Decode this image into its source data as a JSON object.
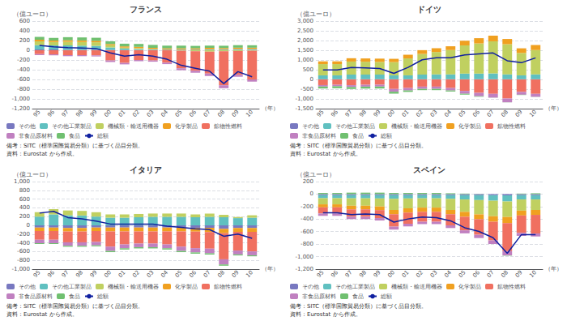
{
  "chart_data": [
    {
      "type": "bar",
      "stacked": true,
      "title": "フランス",
      "xlabel": "（年）",
      "ylabel": "（億ユーロ）",
      "categories": [
        "95",
        "96",
        "97",
        "98",
        "99",
        "00",
        "01",
        "02",
        "03",
        "04",
        "05",
        "06",
        "07",
        "08",
        "09",
        "10"
      ],
      "series": [
        {
          "name": "その他",
          "color": "#7878c0",
          "values": [
            15,
            15,
            10,
            10,
            10,
            8,
            5,
            5,
            5,
            5,
            5,
            5,
            5,
            5,
            5,
            5
          ]
        },
        {
          "name": "その他工業製品",
          "color": "#60c0c0",
          "values": [
            90,
            85,
            90,
            85,
            80,
            50,
            30,
            20,
            15,
            10,
            10,
            10,
            15,
            15,
            20,
            20
          ]
        },
        {
          "name": "機械類・輸送用機器",
          "color": "#c0d060",
          "values": [
            80,
            70,
            75,
            75,
            75,
            45,
            20,
            20,
            5,
            0,
            -10,
            -20,
            -30,
            -20,
            -15,
            -10
          ]
        },
        {
          "name": "化学製品",
          "color": "#f0a020",
          "values": [
            30,
            28,
            32,
            32,
            30,
            25,
            25,
            25,
            25,
            25,
            25,
            25,
            28,
            25,
            28,
            28
          ]
        },
        {
          "name": "鉱物性燃料",
          "color": "#f07060",
          "values": [
            -80,
            -85,
            -100,
            -100,
            -105,
            -210,
            -260,
            -200,
            -210,
            -255,
            -360,
            -400,
            -450,
            -700,
            -490,
            -590
          ]
        },
        {
          "name": "非食品原材料",
          "color": "#c080c0",
          "values": [
            -20,
            -20,
            -22,
            -22,
            -22,
            -32,
            -30,
            -25,
            -25,
            -30,
            -40,
            -42,
            -50,
            -60,
            -40,
            -45
          ]
        },
        {
          "name": "食品",
          "color": "#70c070",
          "values": [
            60,
            58,
            62,
            62,
            62,
            55,
            55,
            60,
            60,
            55,
            55,
            50,
            48,
            48,
            52,
            50
          ]
        },
        {
          "name": "総額",
          "type": "line",
          "color": "#1020a0",
          "values": [
            100,
            70,
            55,
            45,
            35,
            -55,
            -120,
            -90,
            -120,
            -185,
            -310,
            -370,
            -430,
            -685,
            -440,
            -545
          ]
        }
      ],
      "ylim": [
        -1200,
        600
      ],
      "yticks": [
        {
          "value": -1200,
          "label": "-1,200"
        },
        {
          "value": -1000,
          "label": "-1,000"
        },
        -800,
        -600,
        -400,
        -200,
        0,
        200,
        400,
        600
      ],
      "grid": true,
      "legend": "bottom",
      "annotations": [
        "備考：SITC（標準国際貿易分類）に基づく品目分類。",
        "資料：Eurostat から作成。"
      ]
    },
    {
      "type": "bar",
      "stacked": true,
      "title": "ドイツ",
      "xlabel": "（年）",
      "ylabel": "（億ユーロ）",
      "categories": [
        "95",
        "96",
        "97",
        "98",
        "99",
        "00",
        "01",
        "02",
        "03",
        "04",
        "05",
        "06",
        "07",
        "08",
        "09",
        "10"
      ],
      "series": [
        {
          "name": "その他",
          "color": "#7878c0",
          "values": [
            10,
            10,
            10,
            10,
            10,
            10,
            10,
            10,
            10,
            10,
            10,
            10,
            10,
            10,
            10,
            10
          ]
        },
        {
          "name": "その他工業製品",
          "color": "#60c0c0",
          "values": [
            200,
            200,
            240,
            240,
            240,
            200,
            200,
            240,
            250,
            250,
            290,
            290,
            300,
            250,
            200,
            250
          ]
        },
        {
          "name": "機械類・輸送用機器",
          "color": "#c0d060",
          "values": [
            580,
            580,
            670,
            660,
            650,
            680,
            870,
            1060,
            1150,
            1250,
            1450,
            1550,
            1650,
            1550,
            1150,
            1250
          ]
        },
        {
          "name": "化学製品",
          "color": "#f0a020",
          "values": [
            140,
            140,
            170,
            170,
            170,
            170,
            190,
            195,
            195,
            195,
            240,
            270,
            290,
            270,
            240,
            260
          ]
        },
        {
          "name": "鉱物性燃料",
          "color": "#f07060",
          "values": [
            -290,
            -275,
            -295,
            -275,
            -270,
            -490,
            -440,
            -370,
            -370,
            -440,
            -590,
            -690,
            -740,
            -980,
            -640,
            -740
          ]
        },
        {
          "name": "非食品原材料",
          "color": "#c080c0",
          "values": [
            -75,
            -75,
            -95,
            -95,
            -95,
            -140,
            -125,
            -115,
            -115,
            -125,
            -145,
            -175,
            -195,
            -195,
            -145,
            -155
          ]
        },
        {
          "name": "食品",
          "color": "#70c070",
          "values": [
            -100,
            -100,
            -100,
            -100,
            -100,
            -100,
            -75,
            -65,
            -65,
            -55,
            -45,
            -25,
            -5,
            -5,
            -15,
            -5
          ]
        },
        {
          "name": "総額",
          "type": "line",
          "color": "#1020a0",
          "values": [
            490,
            490,
            610,
            590,
            560,
            310,
            620,
            1010,
            1110,
            1115,
            1260,
            1310,
            1360,
            960,
            860,
            1110
          ]
        }
      ],
      "ylim": [
        -1500,
        3000
      ],
      "yticks": [
        {
          "value": -1500,
          "label": "-1,500"
        },
        {
          "value": -1000,
          "label": "-1,000"
        },
        -500,
        0,
        500,
        {
          "value": 1000,
          "label": "1,000"
        },
        {
          "value": 1500,
          "label": "1,500"
        },
        {
          "value": 2000,
          "label": "2,000"
        },
        {
          "value": 2500,
          "label": "2,500"
        },
        {
          "value": 3000,
          "label": "3,000"
        }
      ],
      "grid": true,
      "legend": "bottom",
      "annotations": [
        "備考：SITC（標準国際貿易分類）に基づく品目分類。",
        "資料：Eurostat から作成。"
      ]
    },
    {
      "type": "bar",
      "stacked": true,
      "title": "イタリア",
      "xlabel": "（年）",
      "ylabel": "（億ユーロ）",
      "categories": [
        "95",
        "96",
        "97",
        "98",
        "99",
        "00",
        "01",
        "02",
        "03",
        "04",
        "05",
        "06",
        "07",
        "08",
        "09",
        "10"
      ],
      "series": [
        {
          "name": "その他",
          "color": "#7878c0",
          "values": [
            -50,
            -50,
            -60,
            -60,
            -50,
            -50,
            -50,
            -50,
            -50,
            -50,
            -50,
            -55,
            -55,
            -80,
            -60,
            -60
          ]
        },
        {
          "name": "その他工業製品",
          "color": "#60c0c0",
          "values": [
            200,
            250,
            230,
            225,
            200,
            175,
            175,
            185,
            195,
            195,
            195,
            185,
            195,
            185,
            165,
            175
          ]
        },
        {
          "name": "機械類・輸送用機器",
          "color": "#c0d060",
          "values": [
            100,
            120,
            110,
            105,
            100,
            75,
            75,
            75,
            75,
            75,
            75,
            65,
            75,
            55,
            25,
            55
          ]
        },
        {
          "name": "化学製品",
          "color": "#f0a020",
          "values": [
            -80,
            -80,
            -80,
            -80,
            -80,
            -88,
            -88,
            -88,
            -88,
            -88,
            -88,
            -88,
            -98,
            -98,
            -88,
            -88
          ]
        },
        {
          "name": "鉱物性燃料",
          "color": "#f07060",
          "values": [
            -200,
            -200,
            -248,
            -248,
            -248,
            -348,
            -298,
            -278,
            -278,
            -298,
            -348,
            -378,
            -378,
            -598,
            -428,
            -448
          ]
        },
        {
          "name": "非食品原材料",
          "color": "#c080c0",
          "values": [
            -78,
            -78,
            -78,
            -78,
            -78,
            -98,
            -88,
            -83,
            -83,
            -88,
            -98,
            -98,
            -108,
            -118,
            -88,
            -88
          ]
        },
        {
          "name": "食品",
          "color": "#70c070",
          "values": [
            -20,
            -18,
            -23,
            -23,
            -23,
            -28,
            -28,
            -28,
            -28,
            -28,
            -28,
            -28,
            -28,
            -28,
            -23,
            -23
          ]
        },
        {
          "name": "総額",
          "type": "line",
          "color": "#1020a0",
          "values": [
            280,
            320,
            178,
            148,
            98,
            30,
            28,
            28,
            28,
            -18,
            -48,
            -78,
            -98,
            -248,
            -198,
            -295
          ]
        }
      ],
      "ylim": [
        -1000,
        1000
      ],
      "yticks": [
        {
          "value": -1000,
          "label": "-1,000"
        },
        -800,
        -600,
        -400,
        -200,
        0,
        200,
        400,
        600,
        800,
        {
          "value": 1000,
          "label": "1,000"
        }
      ],
      "grid": true,
      "legend": "bottom",
      "annotations": [
        "備考：SITC（標準国際貿易分類）に基づく品目分類。",
        "資料：Eurostat から作成。"
      ]
    },
    {
      "type": "bar",
      "stacked": true,
      "title": "スペイン",
      "xlabel": "（年）",
      "ylabel": "（億ユーロ）",
      "categories": [
        "95",
        "96",
        "97",
        "98",
        "99",
        "00",
        "01",
        "02",
        "03",
        "04",
        "05",
        "06",
        "07",
        "08",
        "09",
        "10"
      ],
      "series": [
        {
          "name": "その他",
          "color": "#7878c0",
          "values": [
            -18,
            -18,
            -18,
            -18,
            -18,
            -18,
            -18,
            -18,
            -18,
            -18,
            -18,
            -18,
            -18,
            -20,
            -18,
            -18
          ]
        },
        {
          "name": "その他工業製品",
          "color": "#60c0c0",
          "values": [
            -48,
            -48,
            -50,
            -50,
            -52,
            -58,
            -52,
            -50,
            -50,
            -58,
            -68,
            -78,
            -88,
            -98,
            -68,
            -68
          ]
        },
        {
          "name": "機械類・輸送用機器",
          "color": "#c0d060",
          "values": [
            -98,
            -98,
            -118,
            -118,
            -128,
            -178,
            -158,
            -148,
            -148,
            -178,
            -198,
            -228,
            -248,
            -248,
            -178,
            -168
          ]
        },
        {
          "name": "化学製品",
          "color": "#f0a020",
          "values": [
            -48,
            -48,
            -58,
            -58,
            -58,
            -68,
            -68,
            -68,
            -68,
            -68,
            -78,
            -78,
            -88,
            -98,
            -78,
            -78
          ]
        },
        {
          "name": "鉱物性燃料",
          "color": "#f07060",
          "values": [
            -98,
            -98,
            -118,
            -118,
            -128,
            -198,
            -178,
            -158,
            -158,
            -178,
            -218,
            -248,
            -298,
            -448,
            -278,
            -298
          ]
        },
        {
          "name": "非食品原材料",
          "color": "#c080c0",
          "values": [
            -38,
            -38,
            -38,
            -38,
            -38,
            -48,
            -43,
            -38,
            -38,
            -43,
            -48,
            -53,
            -58,
            -68,
            -48,
            -48
          ]
        },
        {
          "name": "食品",
          "color": "#70c070",
          "values": [
            18,
            18,
            23,
            23,
            23,
            18,
            18,
            18,
            18,
            13,
            8,
            3,
            0,
            -5,
            8,
            13
          ]
        },
        {
          "name": "総額",
          "type": "line",
          "color": "#1020a0",
          "values": [
            -298,
            -298,
            -328,
            -318,
            -328,
            -448,
            -398,
            -368,
            -378,
            -428,
            -538,
            -598,
            -698,
            -948,
            -648,
            -648
          ]
        }
      ],
      "ylim": [
        -1200,
        200
      ],
      "yticks": [
        {
          "value": -1200,
          "label": "-1,200"
        },
        {
          "value": -1000,
          "label": "-1,000"
        },
        -800,
        -600,
        -400,
        -200,
        0,
        200
      ],
      "grid": true,
      "legend": "bottom",
      "annotations": [
        "備考：SITC（標準国際貿易分類）に基づく品目分類。",
        "資料：Eurostat から作成。"
      ]
    }
  ]
}
